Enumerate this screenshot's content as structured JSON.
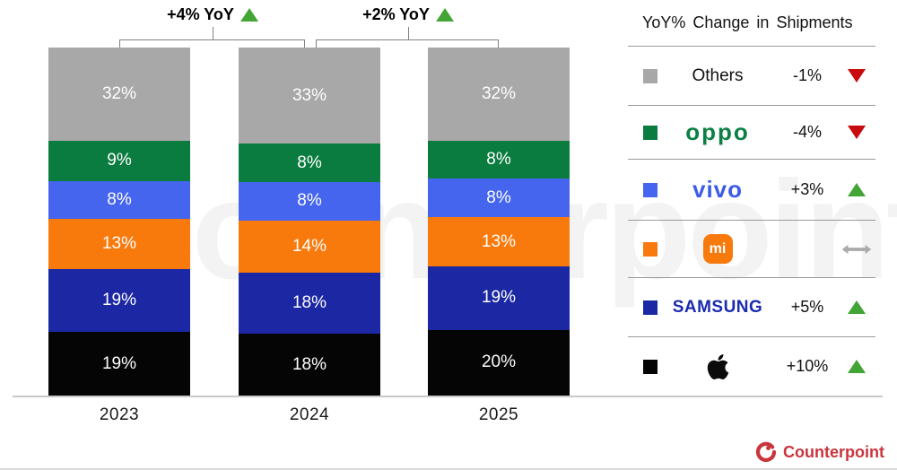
{
  "annotations": [
    {
      "label": "+4% YoY",
      "direction": "up"
    },
    {
      "label": "+2% YoY",
      "direction": "up"
    }
  ],
  "chart_data": {
    "type": "bar",
    "stacked": true,
    "title": "",
    "categories": [
      "2023",
      "2024",
      "2025"
    ],
    "value_suffix": "%",
    "ylim": [
      0,
      100
    ],
    "series": [
      {
        "name": "Others",
        "color": "#a8a8a8",
        "values": [
          32,
          33,
          32
        ]
      },
      {
        "name": "OPPO",
        "color": "#0b7c3f",
        "values": [
          9,
          8,
          8
        ]
      },
      {
        "name": "vivo",
        "color": "#4565ee",
        "values": [
          8,
          8,
          8
        ]
      },
      {
        "name": "Xiaomi",
        "color": "#f87a0d",
        "values": [
          13,
          14,
          13
        ]
      },
      {
        "name": "Samsung",
        "color": "#1b27a3",
        "values": [
          19,
          18,
          19
        ]
      },
      {
        "name": "Apple",
        "color": "#050505",
        "values": [
          19,
          18,
          20
        ]
      }
    ],
    "yoy_annotations": [
      {
        "between": [
          "2023",
          "2024"
        ],
        "label": "+4% YoY",
        "direction": "up"
      },
      {
        "between": [
          "2024",
          "2025"
        ],
        "label": "+2% YoY",
        "direction": "up"
      }
    ]
  },
  "legend": {
    "title": "YoY% Change in Shipments",
    "rows": [
      {
        "brand": "Others",
        "logo_text": "Others",
        "swatch": "#a8a8a8",
        "change": "-1%",
        "trend": "down"
      },
      {
        "brand": "OPPO",
        "logo_text": "oppo",
        "swatch": "#0b7c3f",
        "change": "-4%",
        "trend": "down"
      },
      {
        "brand": "vivo",
        "logo_text": "vivo",
        "swatch": "#4565ee",
        "change": "+3%",
        "trend": "up"
      },
      {
        "brand": "Xiaomi",
        "logo_text": "mi",
        "swatch": "#f87a0d",
        "change": "",
        "trend": "flat"
      },
      {
        "brand": "Samsung",
        "logo_text": "SAMSUNG",
        "swatch": "#1b27a3",
        "change": "+5%",
        "trend": "up"
      },
      {
        "brand": "Apple",
        "logo_text": "",
        "swatch": "#050505",
        "change": "+10%",
        "trend": "up"
      }
    ]
  },
  "footer": {
    "brand": "Counterpoint"
  },
  "watermark": "Counterpoint",
  "colors": {
    "trend_up": "#43a536",
    "trend_down": "#c70b0e",
    "trend_flat": "#ababab"
  }
}
